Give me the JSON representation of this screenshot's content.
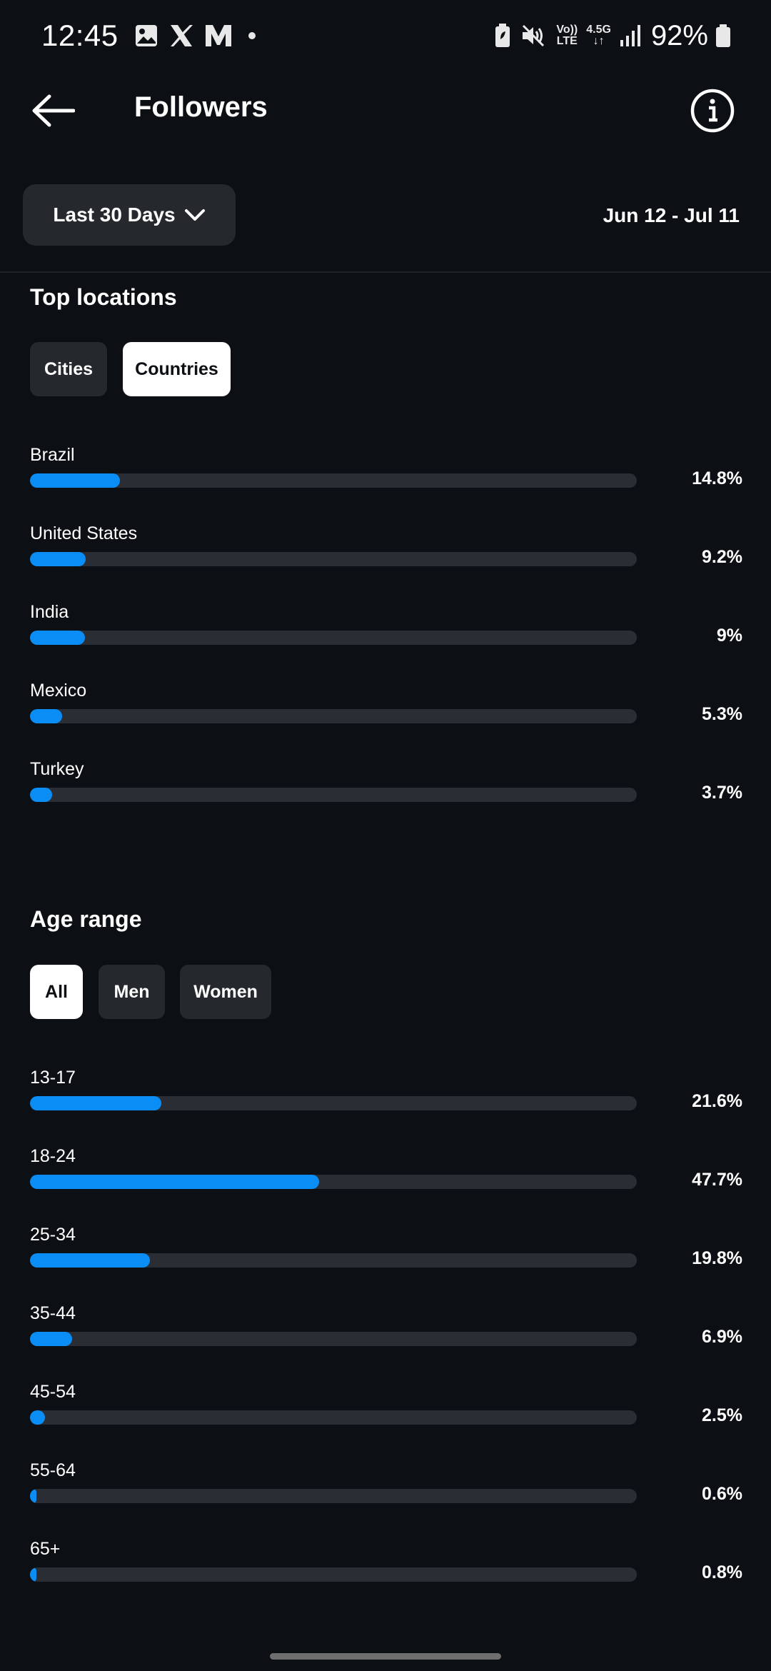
{
  "status_bar": {
    "time": "12:45",
    "battery_percent": "92%",
    "network_top": "4.5G",
    "volte_top": "Vo))",
    "volte_bottom": "LTE"
  },
  "header": {
    "title": "Followers"
  },
  "filter": {
    "range_label": "Last 30 Days",
    "date_range": "Jun 12 - Jul 11"
  },
  "top_locations": {
    "title": "Top locations",
    "tabs": [
      {
        "label": "Cities",
        "active": false
      },
      {
        "label": "Countries",
        "active": true
      }
    ],
    "rows": [
      {
        "label": "Brazil",
        "value": 14.8,
        "pct": "14.8%"
      },
      {
        "label": "United States",
        "value": 9.2,
        "pct": "9.2%"
      },
      {
        "label": "India",
        "value": 9.0,
        "pct": "9%"
      },
      {
        "label": "Mexico",
        "value": 5.3,
        "pct": "5.3%"
      },
      {
        "label": "Turkey",
        "value": 3.7,
        "pct": "3.7%"
      }
    ]
  },
  "age_range": {
    "title": "Age range",
    "tabs": [
      {
        "label": "All",
        "active": true
      },
      {
        "label": "Men",
        "active": false
      },
      {
        "label": "Women",
        "active": false
      }
    ],
    "rows": [
      {
        "label": "13-17",
        "value": 21.6,
        "pct": "21.6%"
      },
      {
        "label": "18-24",
        "value": 47.7,
        "pct": "47.7%"
      },
      {
        "label": "25-34",
        "value": 19.8,
        "pct": "19.8%"
      },
      {
        "label": "35-44",
        "value": 6.9,
        "pct": "6.9%"
      },
      {
        "label": "45-54",
        "value": 2.5,
        "pct": "2.5%"
      },
      {
        "label": "55-64",
        "value": 0.6,
        "pct": "0.6%"
      },
      {
        "label": "65+",
        "value": 0.8,
        "pct": "0.8%"
      }
    ]
  },
  "colors": {
    "background": "#0c1014",
    "accent_bar": "#0a8ef5",
    "track": "#2a2e34",
    "chip_inactive": "#25292e",
    "chip_active": "#ffffff"
  }
}
